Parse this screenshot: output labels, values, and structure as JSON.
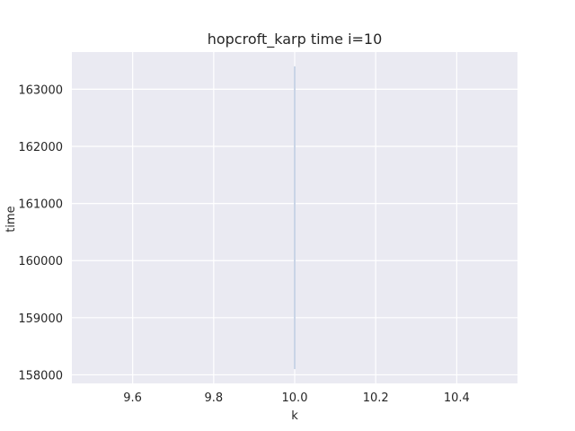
{
  "colors": {
    "plot_background": "#EAEAF2",
    "grid": "#FFFFFF",
    "series_band": "#C9D4E6",
    "text": "#262626"
  },
  "chart_data": {
    "type": "line",
    "title": "hopcroft_karp time i=10",
    "xlabel": "k",
    "ylabel": "time",
    "xlim": [
      9.45,
      10.55
    ],
    "ylim": [
      157850,
      163650
    ],
    "xticks": [
      9.6,
      9.8,
      10.0,
      10.2,
      10.4
    ],
    "xtick_labels": [
      "9.6",
      "9.8",
      "10.0",
      "10.2",
      "10.4"
    ],
    "yticks": [
      158000,
      159000,
      160000,
      161000,
      162000,
      163000
    ],
    "ytick_labels": [
      "158000",
      "159000",
      "160000",
      "161000",
      "162000",
      "163000"
    ],
    "grid": true,
    "series": [
      {
        "x": [
          10.0
        ],
        "y_min": [
          158100
        ],
        "y_max": [
          163400
        ]
      }
    ]
  }
}
